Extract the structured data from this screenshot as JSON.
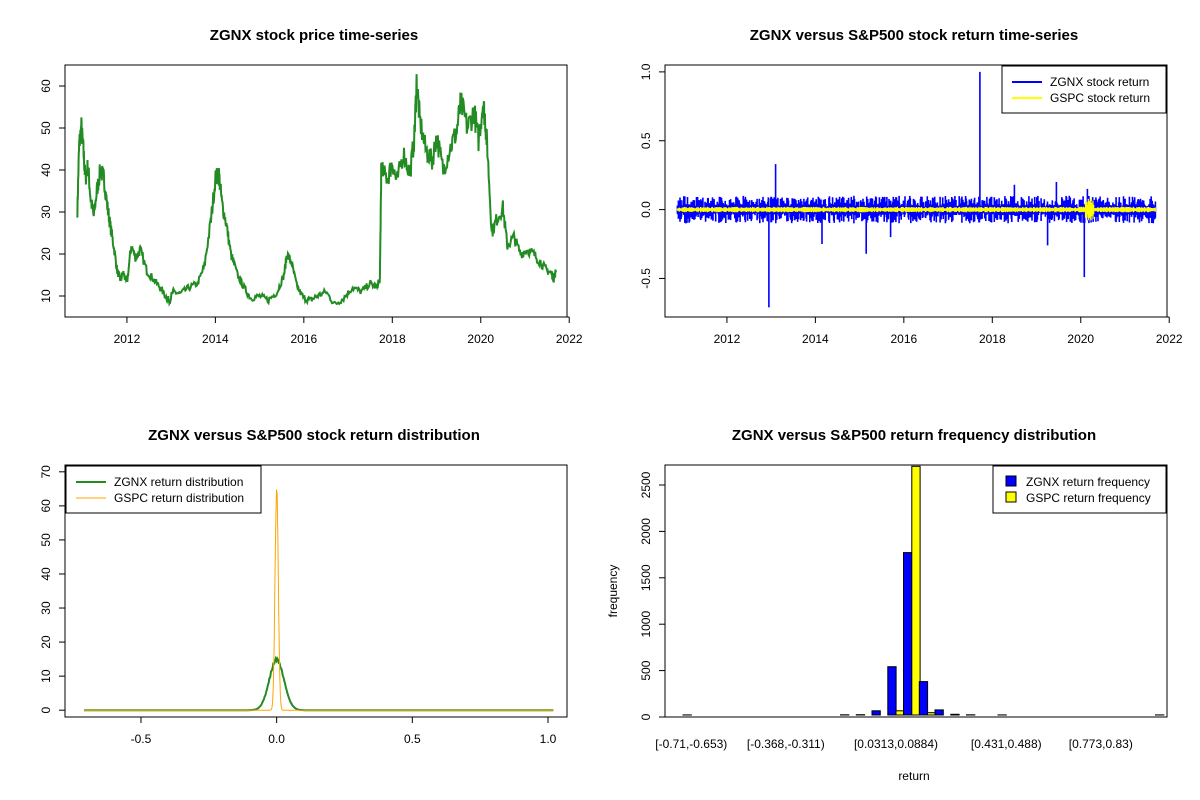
{
  "chart_data": [
    {
      "type": "line",
      "title": "ZGNX stock price time-series",
      "xlabel": "",
      "ylabel": "",
      "xlim": [
        2010.6,
        2021.95
      ],
      "ylim": [
        5,
        65
      ],
      "xticks": [
        "2012",
        "2014",
        "2016",
        "2018",
        "2020",
        "2022"
      ],
      "yticks": [
        "10",
        "20",
        "30",
        "40",
        "50",
        "60"
      ],
      "colors": {
        "line": "#228b22"
      },
      "series": [
        {
          "x": [
            2010.88,
            2010.92,
            2010.97,
            2011.02,
            2011.06,
            2011.12,
            2011.18,
            2011.25,
            2011.32,
            2011.4,
            2011.48,
            2011.55,
            2011.62,
            2011.7,
            2011.78,
            2011.85,
            2011.92,
            2012.0,
            2012.1,
            2012.2,
            2012.3,
            2012.45,
            2012.6,
            2012.75,
            2012.9,
            2012.96,
            2013.05,
            2013.2,
            2013.4,
            2013.6,
            2013.75,
            2013.9,
            2014.0,
            2014.08,
            2014.15,
            2014.25,
            2014.35,
            2014.5,
            2014.65,
            2014.8,
            2015.0,
            2015.2,
            2015.4,
            2015.55,
            2015.62,
            2015.72,
            2015.85,
            2016.0,
            2016.15,
            2016.3,
            2016.5,
            2016.7,
            2016.9,
            2017.1,
            2017.3,
            2017.5,
            2017.65,
            2017.72,
            2017.75,
            2017.9,
            2018.0,
            2018.1,
            2018.25,
            2018.4,
            2018.5,
            2018.55,
            2018.62,
            2018.75,
            2018.9,
            2019.0,
            2019.15,
            2019.3,
            2019.45,
            2019.55,
            2019.7,
            2019.85,
            2019.95,
            2020.05,
            2020.1,
            2020.15,
            2020.25,
            2020.35,
            2020.5,
            2020.6,
            2020.75,
            2020.9,
            2021.05,
            2021.2,
            2021.35,
            2021.5,
            2021.6,
            2021.65,
            2021.7
          ],
          "y": [
            30.5,
            46,
            50,
            44,
            38,
            41,
            33,
            29,
            35,
            40,
            38,
            32,
            27,
            22,
            16,
            14,
            15.5,
            13,
            22,
            19,
            21,
            16,
            14,
            12,
            9.5,
            9,
            11,
            10.5,
            12,
            13,
            17,
            28,
            38,
            39,
            32,
            27,
            20,
            15,
            12,
            9.5,
            10,
            9,
            11,
            15,
            20,
            18,
            12,
            9.5,
            9,
            10,
            11,
            8,
            9.5,
            12,
            11,
            13,
            12,
            14,
            40,
            38,
            42,
            37,
            44,
            39,
            48,
            61,
            52,
            45,
            42,
            48,
            40,
            45,
            49,
            56,
            50,
            54,
            47,
            56,
            52,
            45,
            25,
            28,
            31,
            22,
            24,
            20,
            21,
            20,
            18,
            16,
            15.5,
            14,
            16
          ]
        }
      ]
    },
    {
      "type": "line",
      "title": "ZGNX versus S&P500 stock return time-series",
      "xlabel": "",
      "ylabel": "",
      "xlim": [
        2010.6,
        2021.95
      ],
      "ylim": [
        -0.78,
        1.05
      ],
      "xticks": [
        "2012",
        "2014",
        "2016",
        "2018",
        "2020",
        "2022"
      ],
      "yticks": [
        "-0.5",
        "0.0",
        "0.5",
        "1.0"
      ],
      "legend": {
        "position": "top-right",
        "entries": [
          "ZGNX stock return",
          "GSPC stock return"
        ]
      },
      "series": [
        {
          "name": "ZGNX stock return",
          "color": "#0000ff",
          "spikes_x": [
            2012.95,
            2013.1,
            2014.15,
            2015.15,
            2015.7,
            2017.72,
            2018.5,
            2019.25,
            2019.45,
            2020.08,
            2020.15
          ],
          "spikes_y": [
            -0.71,
            0.33,
            -0.25,
            -0.32,
            -0.2,
            1.0,
            0.18,
            -0.26,
            0.2,
            -0.49,
            0.15
          ]
        },
        {
          "name": "GSPC stock return",
          "color": "#ffff00"
        }
      ]
    },
    {
      "type": "line",
      "title": "ZGNX versus S&P500 stock return distribution",
      "xlabel": "",
      "ylabel": "",
      "xlim": [
        -0.78,
        1.07
      ],
      "ylim": [
        -2,
        72
      ],
      "xticks": [
        "-0.5",
        "0.0",
        "0.5",
        "1.0"
      ],
      "yticks": [
        "0",
        "10",
        "20",
        "30",
        "40",
        "50",
        "60",
        "70"
      ],
      "legend": {
        "position": "top-left",
        "entries": [
          "ZGNX return distribution",
          "GSPC return distribution"
        ]
      },
      "series": [
        {
          "name": "ZGNX return distribution",
          "color": "#228b22",
          "peak_x": 0.0,
          "peak_y": 14.8,
          "sd": 0.027
        },
        {
          "name": "GSPC return distribution",
          "color": "#ffa500",
          "peak_x": 0.0,
          "peak_y": 68,
          "sd": 0.0058
        }
      ]
    },
    {
      "type": "bar",
      "title": "ZGNX versus S&P500 return frequency distribution",
      "xlabel": "return",
      "ylabel": "frequency",
      "ylim": [
        0,
        2650
      ],
      "yticks": [
        "0",
        "500",
        "1000",
        "1500",
        "2000",
        "2500"
      ],
      "category_labels": [
        "[-0.71,-0.653)",
        "[-0.368,-0.311)",
        "[0.0313,0.0884)",
        "[0.431,0.488)",
        "[0.773,0.83)"
      ],
      "legend": {
        "position": "top-right",
        "entries": [
          "ZGNX return frequency",
          "GSPC return frequency"
        ]
      },
      "series": [
        {
          "name": "ZGNX return frequency",
          "color": "#0000ff",
          "values": [
            1,
            0,
            0,
            0,
            0,
            0,
            0,
            0,
            0,
            0,
            2,
            3,
            45,
            520,
            1750,
            360,
            55,
            8,
            2,
            0,
            1,
            0,
            0,
            0,
            0,
            0,
            0,
            0,
            0,
            0,
            1
          ]
        },
        {
          "name": "GSPC return frequency",
          "color": "#ffff00",
          "values": [
            0,
            0,
            0,
            0,
            0,
            0,
            0,
            0,
            0,
            0,
            0,
            0,
            0,
            45,
            2680,
            25,
            0,
            0,
            0,
            0,
            0,
            0,
            0,
            0,
            0,
            0,
            0,
            0,
            0,
            0,
            0
          ]
        }
      ]
    }
  ]
}
